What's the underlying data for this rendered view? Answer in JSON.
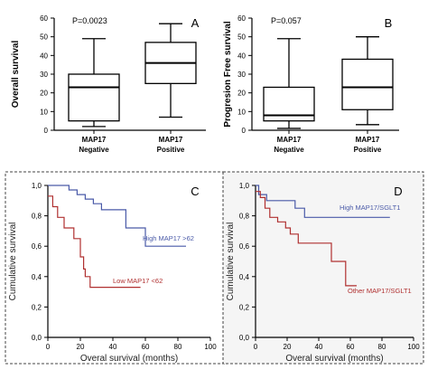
{
  "colors": {
    "high": "#4a5aa8",
    "low": "#b03030",
    "panel_d_bg": "#f5f5f5"
  },
  "chart_data": [
    {
      "panel": "A",
      "type": "box",
      "annotation": "P=0.0023",
      "ylabel": "Overall survival",
      "ylim": [
        0,
        60
      ],
      "yticks": [
        0,
        10,
        20,
        30,
        40,
        50,
        60
      ],
      "categories": [
        {
          "line1": "MAP17",
          "line2": "Negative"
        },
        {
          "line1": "MAP17",
          "line2": "Positive"
        }
      ],
      "boxes": [
        {
          "min": 2,
          "q1": 5,
          "median": 23,
          "q3": 30,
          "max": 49
        },
        {
          "min": 7,
          "q1": 25,
          "median": 36,
          "q3": 47,
          "max": 57
        }
      ]
    },
    {
      "panel": "B",
      "type": "box",
      "annotation": "P=0.057",
      "ylabel": "Progresion Free survival",
      "ylim": [
        0,
        60
      ],
      "yticks": [
        0,
        10,
        20,
        30,
        40,
        50,
        60
      ],
      "categories": [
        {
          "line1": "MAP17",
          "line2": "Negative"
        },
        {
          "line1": "MAP17",
          "line2": "Positive"
        }
      ],
      "boxes": [
        {
          "min": 1,
          "q1": 5,
          "median": 8,
          "q3": 23,
          "max": 49
        },
        {
          "min": 3,
          "q1": 11,
          "median": 23,
          "q3": 38,
          "max": 50
        }
      ]
    },
    {
      "panel": "C",
      "type": "line",
      "xlabel": "Overal survival (months)",
      "ylabel": "Cumulative survival",
      "xlim": [
        0,
        100
      ],
      "ylim": [
        0,
        1.0
      ],
      "xticks": [
        0,
        20,
        40,
        60,
        80,
        100
      ],
      "yticks": [
        "0,0",
        "0,2",
        "0,4",
        "0,6",
        "0,8",
        "1,0"
      ],
      "series": [
        {
          "name": "High MAP17 >62",
          "color": "high",
          "points": [
            [
              0,
              1.0
            ],
            [
              13,
              1.0
            ],
            [
              13,
              0.97
            ],
            [
              18,
              0.97
            ],
            [
              18,
              0.94
            ],
            [
              23,
              0.94
            ],
            [
              23,
              0.91
            ],
            [
              28,
              0.91
            ],
            [
              28,
              0.88
            ],
            [
              33,
              0.88
            ],
            [
              33,
              0.84
            ],
            [
              48,
              0.84
            ],
            [
              48,
              0.72
            ],
            [
              60,
              0.72
            ],
            [
              60,
              0.6
            ],
            [
              85,
              0.6
            ]
          ]
        },
        {
          "name": "Low MAP17 <62",
          "color": "low",
          "points": [
            [
              0,
              0.93
            ],
            [
              3,
              0.93
            ],
            [
              3,
              0.86
            ],
            [
              6,
              0.86
            ],
            [
              6,
              0.79
            ],
            [
              10,
              0.79
            ],
            [
              10,
              0.72
            ],
            [
              16,
              0.72
            ],
            [
              16,
              0.65
            ],
            [
              20,
              0.65
            ],
            [
              20,
              0.53
            ],
            [
              22,
              0.53
            ],
            [
              22,
              0.45
            ],
            [
              23,
              0.45
            ],
            [
              23,
              0.4
            ],
            [
              26,
              0.4
            ],
            [
              26,
              0.33
            ],
            [
              57,
              0.33
            ]
          ]
        }
      ]
    },
    {
      "panel": "D",
      "type": "line",
      "xlabel": "Overal survival (months)",
      "ylabel": "Cumulative survival",
      "xlim": [
        0,
        100
      ],
      "ylim": [
        0,
        1.0
      ],
      "xticks": [
        0,
        20,
        40,
        60,
        80,
        100
      ],
      "yticks": [
        "0,0",
        "0,2",
        "0,4",
        "0,6",
        "0,8",
        "1,0"
      ],
      "series": [
        {
          "name": "High MAP17/SGLT1",
          "color": "high",
          "points": [
            [
              0,
              1.0
            ],
            [
              2,
              1.0
            ],
            [
              2,
              0.94
            ],
            [
              7,
              0.94
            ],
            [
              7,
              0.9
            ],
            [
              25,
              0.9
            ],
            [
              25,
              0.85
            ],
            [
              31,
              0.85
            ],
            [
              31,
              0.79
            ],
            [
              85,
              0.79
            ]
          ]
        },
        {
          "name": "Other MAP17/SGLT1",
          "color": "low",
          "points": [
            [
              0,
              0.96
            ],
            [
              3,
              0.96
            ],
            [
              3,
              0.92
            ],
            [
              6,
              0.92
            ],
            [
              6,
              0.85
            ],
            [
              9,
              0.85
            ],
            [
              9,
              0.79
            ],
            [
              14,
              0.79
            ],
            [
              14,
              0.76
            ],
            [
              19,
              0.76
            ],
            [
              19,
              0.72
            ],
            [
              22,
              0.72
            ],
            [
              22,
              0.68
            ],
            [
              27,
              0.68
            ],
            [
              27,
              0.62
            ],
            [
              48,
              0.62
            ],
            [
              48,
              0.5
            ],
            [
              57,
              0.5
            ],
            [
              57,
              0.34
            ],
            [
              64,
              0.34
            ]
          ]
        }
      ]
    }
  ]
}
